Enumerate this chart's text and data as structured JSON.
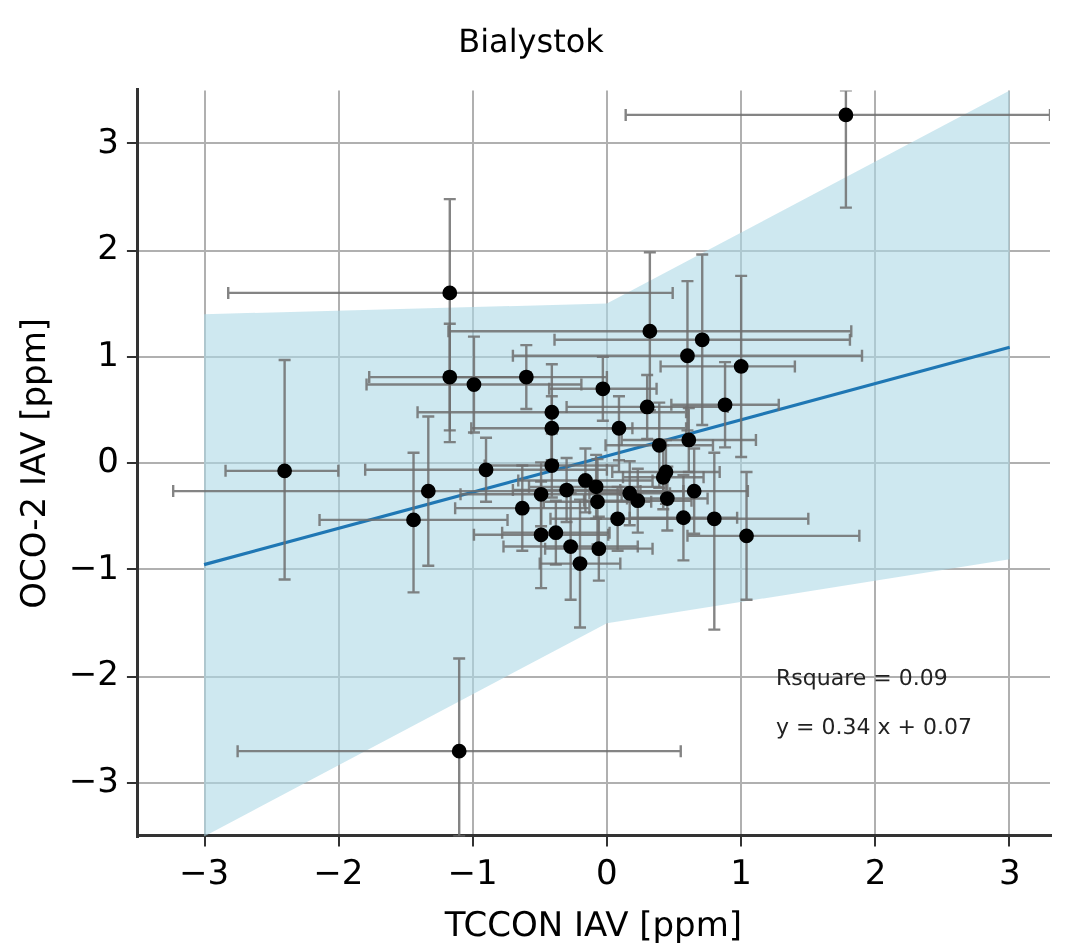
{
  "chart_data": {
    "type": "scatter",
    "title": "Bialystok",
    "xlabel": "TCCON IAV [ppm]",
    "ylabel": "OCO-2 IAV [ppm]",
    "xlim": [
      -3.5,
      3.3
    ],
    "ylim": [
      -3.5,
      3.5
    ],
    "xticks": [
      -3,
      -2,
      -1,
      0,
      1,
      2,
      3
    ],
    "yticks": [
      -3,
      -2,
      -1,
      0,
      1,
      2,
      3
    ],
    "grid": true,
    "legend": false,
    "annotations": [
      "Rsquare = 0.09",
      "y = 0.34 x + 0.07"
    ],
    "series": [
      {
        "type": "line",
        "color": "#1f77b4",
        "marker": "none",
        "line_style": "solid",
        "x": [
          -3,
          0,
          3
        ],
        "values": [
          -0.95,
          0.07,
          1.09
        ],
        "lower": [
          -3.5,
          -1.5,
          -0.9
        ],
        "upper": [
          1.4,
          1.5,
          3.5
        ]
      },
      {
        "type": "scatter",
        "color": "#000000",
        "marker": "circle",
        "x": [
          1.78,
          -1.17,
          -1.17,
          -0.99,
          -0.6,
          -0.41,
          -0.41,
          -0.03,
          -2.4,
          -0.9,
          -0.41,
          -1.33,
          -1.44,
          -0.63,
          -0.49,
          -0.3,
          -0.16,
          -0.49,
          -0.38,
          -0.27,
          -0.2,
          -1.1,
          -0.06,
          -0.07,
          -0.08,
          0.39,
          0.61,
          0.17,
          0.23,
          0.42,
          0.44,
          0.45,
          0.65,
          0.08,
          0.57,
          0.8,
          1.04,
          0.32,
          0.71,
          0.6,
          1.0,
          0.3,
          0.88,
          0.09
        ],
        "values": [
          3.27,
          1.6,
          0.81,
          0.74,
          0.81,
          0.48,
          0.33,
          0.7,
          -0.07,
          -0.06,
          -0.02,
          -0.26,
          -0.53,
          -0.42,
          -0.29,
          -0.25,
          -0.16,
          -0.67,
          -0.65,
          -0.78,
          -0.94,
          -2.7,
          -0.8,
          -0.36,
          -0.22,
          0.17,
          0.22,
          -0.28,
          -0.35,
          -0.13,
          -0.08,
          -0.33,
          -0.26,
          -0.52,
          -0.51,
          -0.52,
          -0.68,
          1.24,
          1.16,
          1.01,
          0.91,
          0.53,
          0.55,
          0.33
        ],
        "xerrors": [
          [
            0.14,
            3.3
          ],
          [
            -2.82,
            0.49
          ],
          0.6,
          0.8,
          0.6,
          1.0,
          0.6,
          0.4,
          [
            -2.84,
            -2.0
          ],
          0.9,
          0.5,
          1.9,
          0.7,
          0.5,
          0.6,
          0.4,
          0.5,
          0.5,
          0.4,
          0.5,
          0.3,
          [
            -2.75,
            0.55
          ],
          0.4,
          0.4,
          0.5,
          0.4,
          0.5,
          0.3,
          0.4,
          0.3,
          0.4,
          0.3,
          0.4,
          0.5,
          0.4,
          0.7,
          [
            0.6,
            1.88
          ],
          1.5,
          1.1,
          1.3,
          [
            0.4,
            1.4
          ],
          0.6,
          0.4,
          0.5
        ],
        "errors": [
          [
            2.4,
            3.5
          ],
          [
            0.2,
            2.48
          ],
          0.5,
          0.45,
          0.3,
          0.45,
          0.3,
          0.3,
          [
            -1.09,
            0.97
          ],
          0.3,
          0.3,
          0.7,
          [
            -1.21,
            0.1
          ],
          0.4,
          0.3,
          0.3,
          0.3,
          0.5,
          0.3,
          0.5,
          0.6,
          [
            -3.5,
            -1.83
          ],
          0.3,
          0.4,
          0.3,
          0.4,
          0.3,
          0.3,
          0.3,
          0.3,
          0.3,
          0.3,
          0.4,
          0.3,
          0.4,
          [
            -1.56,
            0.1
          ],
          0.6,
          [
            0.5,
            1.98
          ],
          0.8,
          0.7,
          0.85,
          0.3,
          0.4,
          0.3
        ]
      }
    ]
  }
}
